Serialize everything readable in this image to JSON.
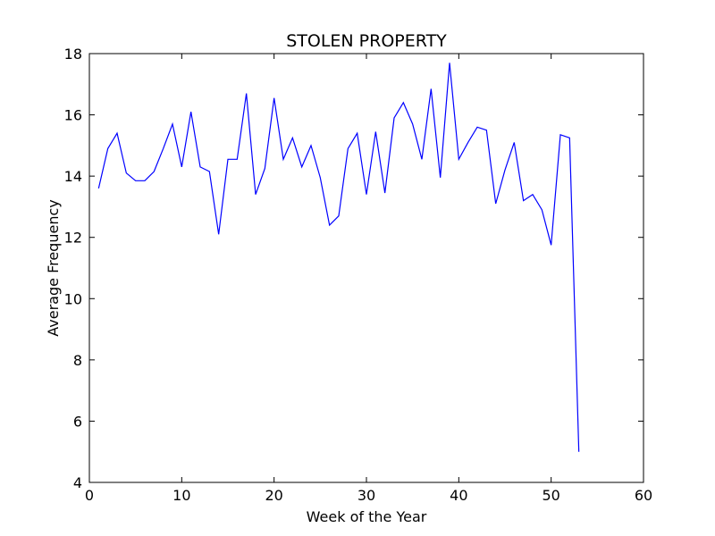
{
  "chart_data": {
    "type": "line",
    "title": "STOLEN PROPERTY",
    "xlabel": "Week of the Year",
    "ylabel": "Average Frequency",
    "xlim": [
      0,
      60
    ],
    "ylim": [
      4,
      18
    ],
    "xticks": [
      0,
      10,
      20,
      30,
      40,
      50,
      60
    ],
    "yticks": [
      4,
      6,
      8,
      10,
      12,
      14,
      16,
      18
    ],
    "grid": false,
    "line_color": "#0000ff",
    "series": [
      {
        "x": [
          1,
          2,
          3,
          4,
          5,
          6,
          7,
          8,
          9,
          10,
          11,
          12,
          13,
          14,
          15,
          16,
          17,
          18,
          19,
          20,
          21,
          22,
          23,
          24,
          25,
          26,
          27,
          28,
          29,
          30,
          31,
          32,
          33,
          34,
          35,
          36,
          37,
          38,
          39,
          40,
          41,
          42,
          43,
          44,
          45,
          46,
          47,
          48,
          49,
          50,
          51,
          52,
          53
        ],
        "values": [
          13.6,
          14.9,
          15.4,
          14.1,
          13.85,
          13.85,
          14.15,
          14.9,
          15.7,
          14.3,
          16.1,
          14.3,
          14.15,
          12.1,
          14.55,
          14.55,
          16.7,
          13.4,
          14.25,
          16.55,
          14.55,
          15.25,
          14.3,
          15.0,
          13.95,
          12.4,
          12.7,
          14.9,
          15.4,
          13.4,
          15.45,
          13.45,
          15.9,
          16.4,
          15.7,
          14.55,
          16.85,
          13.95,
          17.7,
          14.55,
          15.1,
          15.6,
          15.5,
          13.1,
          14.2,
          15.1,
          13.2,
          13.4,
          12.9,
          11.75,
          15.35,
          15.25,
          5.0
        ]
      }
    ]
  }
}
